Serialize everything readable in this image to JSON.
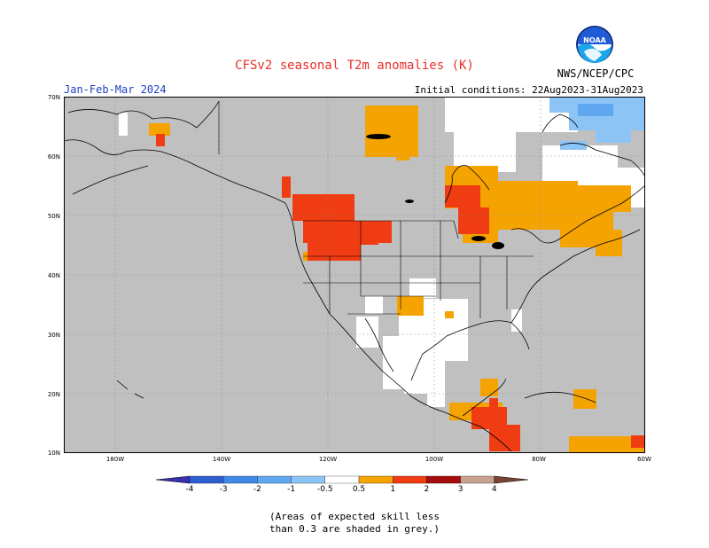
{
  "header": {
    "title": "CFSv2 seasonal T2m anomalies (K)",
    "period": "Jan-Feb-Mar 2024",
    "initial_conditions": "Initial conditions: 22Aug2023-31Aug2023",
    "agency": "NWS/NCEP/CPC",
    "logo": "NOAA"
  },
  "axes": {
    "lat_labels": [
      "70N",
      "60N",
      "50N",
      "40N",
      "30N",
      "20N",
      "10N"
    ],
    "lon_labels": [
      "180W",
      "140W",
      "120W",
      "100W",
      "80W",
      "60W"
    ]
  },
  "legend": {
    "levels": [
      "-4",
      "-3",
      "-2",
      "-1",
      "-0.5",
      "0.5",
      "1",
      "2",
      "3",
      "4"
    ],
    "colors": [
      "#3a2fb0",
      "#2e5fd1",
      "#3f8ae6",
      "#5fa8f0",
      "#8cc4f5",
      "#ffffff",
      "#f5a300",
      "#f03c12",
      "#a30d0d",
      "#c9a18f",
      "#7a4433"
    ],
    "skill_color": "#c0c0c0"
  },
  "note": {
    "line1": "(Areas of expected skill less",
    "line2": "than 0.3 are shaded in grey.)"
  }
}
